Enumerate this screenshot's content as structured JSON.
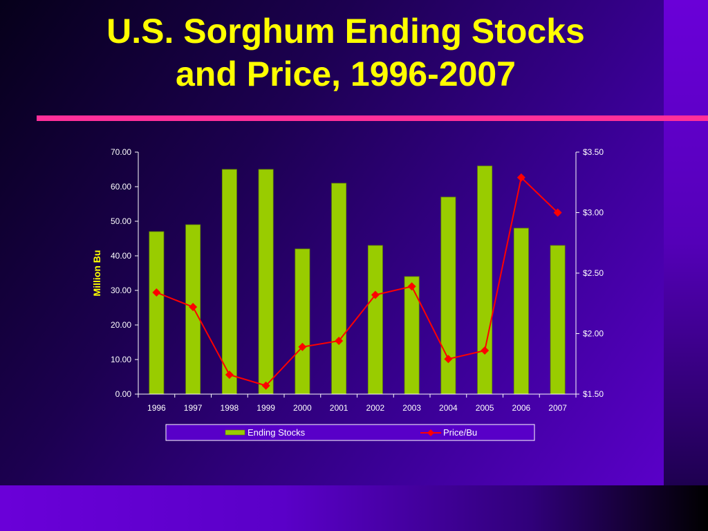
{
  "slide": {
    "title_line1": "U.S. Sorghum Ending Stocks",
    "title_line2": "and Price, 1996-2007"
  },
  "colors": {
    "title": "#ffff00",
    "rule": "#ff2f9a",
    "bar": "#99cc00",
    "line": "#ff0000",
    "axis": "#ffffff"
  },
  "chart_data": {
    "type": "bar",
    "categories": [
      "1996",
      "1997",
      "1998",
      "1999",
      "2000",
      "2001",
      "2002",
      "2003",
      "2004",
      "2005",
      "2006",
      "2007"
    ],
    "series": [
      {
        "name": "Ending Stocks",
        "type": "bar",
        "axis": "left",
        "values": [
          47,
          49,
          65,
          65,
          42,
          61,
          43,
          34,
          57,
          66,
          48,
          43
        ]
      },
      {
        "name": "Price/Bu",
        "type": "line",
        "axis": "right",
        "marker": "diamond",
        "values": [
          2.34,
          2.22,
          1.66,
          1.57,
          1.89,
          1.94,
          2.32,
          2.39,
          1.79,
          1.86,
          3.29,
          3.0
        ]
      }
    ],
    "ylabel": "Million Bu",
    "xlabel": "",
    "ylim": [
      0,
      70
    ],
    "y_ticks": [
      "0.00",
      "10.00",
      "20.00",
      "30.00",
      "40.00",
      "50.00",
      "60.00",
      "70.00"
    ],
    "y2lim": [
      1.5,
      3.5
    ],
    "y2_ticks": [
      "$1.50",
      "$2.00",
      "$2.50",
      "$3.00",
      "$3.50"
    ],
    "grid": false,
    "legend_position": "bottom"
  }
}
